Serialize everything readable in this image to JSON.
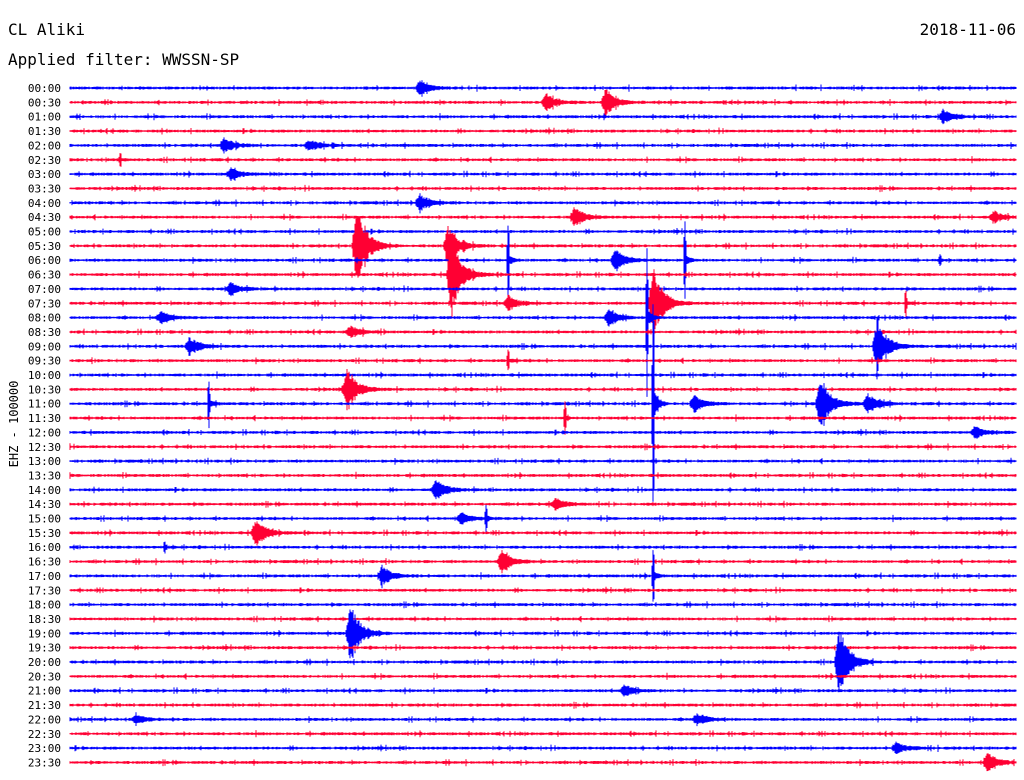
{
  "header": {
    "station": "CL Aliki",
    "date": "2018-11-06",
    "filter": "Applied filter: WWSSN-SP"
  },
  "chart_data": {
    "type": "line",
    "title": "CL Aliki",
    "subtitle": "Applied filter: WWSSN-SP",
    "ylabel": "EHZ - 100000",
    "xlabel": "",
    "grid": false,
    "legend": "none",
    "colors": {
      "even_rows": "#0000ff",
      "odd_rows": "#ff0033"
    },
    "row_labels": [
      "00:00",
      "00:30",
      "01:00",
      "01:30",
      "02:00",
      "02:30",
      "03:00",
      "03:30",
      "04:00",
      "04:30",
      "05:00",
      "05:30",
      "06:00",
      "06:30",
      "07:00",
      "07:30",
      "08:00",
      "08:30",
      "09:00",
      "09:30",
      "10:00",
      "10:30",
      "11:00",
      "11:30",
      "12:00",
      "12:30",
      "13:00",
      "13:30",
      "14:00",
      "14:30",
      "15:00",
      "15:30",
      "16:00",
      "16:30",
      "17:00",
      "17:30",
      "18:00",
      "18:30",
      "19:00",
      "19:30",
      "20:00",
      "20:30",
      "21:00",
      "21:30",
      "22:00",
      "22:30",
      "23:00",
      "23:30"
    ],
    "row_duration_min": 30,
    "events": [
      {
        "row": "00:00",
        "minute": 11.0,
        "amp": 8,
        "type": "burst"
      },
      {
        "row": "00:30",
        "minute": 15.0,
        "amp": 9,
        "type": "burst"
      },
      {
        "row": "00:30",
        "minute": 16.9,
        "amp": 14,
        "type": "burst"
      },
      {
        "row": "01:00",
        "minute": 27.6,
        "amp": 7,
        "type": "burst"
      },
      {
        "row": "02:00",
        "minute": 4.8,
        "amp": 8,
        "type": "burst"
      },
      {
        "row": "02:00",
        "minute": 7.5,
        "amp": 5,
        "type": "burst"
      },
      {
        "row": "02:30",
        "minute": 1.6,
        "amp": 7,
        "type": "spike"
      },
      {
        "row": "03:00",
        "minute": 5.0,
        "amp": 6,
        "type": "burst"
      },
      {
        "row": "04:00",
        "minute": 11.0,
        "amp": 9,
        "type": "burst"
      },
      {
        "row": "04:30",
        "minute": 15.9,
        "amp": 10,
        "type": "burst"
      },
      {
        "row": "04:30",
        "minute": 29.2,
        "amp": 6,
        "type": "burst"
      },
      {
        "row": "05:30",
        "minute": 9.0,
        "amp": 45,
        "type": "burst"
      },
      {
        "row": "05:30",
        "minute": 11.9,
        "amp": 20,
        "type": "burst"
      },
      {
        "row": "06:30",
        "minute": 12.0,
        "amp": 40,
        "type": "burst"
      },
      {
        "row": "06:00",
        "minute": 13.9,
        "amp": 40,
        "type": "spike"
      },
      {
        "row": "06:00",
        "minute": 17.2,
        "amp": 12,
        "type": "burst"
      },
      {
        "row": "06:00",
        "minute": 19.5,
        "amp": 40,
        "type": "spike"
      },
      {
        "row": "06:00",
        "minute": 27.6,
        "amp": 6,
        "type": "spike"
      },
      {
        "row": "07:00",
        "minute": 5.0,
        "amp": 6,
        "type": "burst"
      },
      {
        "row": "07:30",
        "minute": 13.8,
        "amp": 8,
        "type": "burst"
      },
      {
        "row": "07:30",
        "minute": 18.4,
        "amp": 40,
        "type": "burst"
      },
      {
        "row": "07:30",
        "minute": 26.5,
        "amp": 14,
        "type": "spike"
      },
      {
        "row": "08:00",
        "minute": 2.8,
        "amp": 6,
        "type": "burst"
      },
      {
        "row": "08:00",
        "minute": 17.0,
        "amp": 8,
        "type": "burst"
      },
      {
        "row": "08:00",
        "minute": 18.3,
        "amp": 70,
        "type": "spike"
      },
      {
        "row": "08:30",
        "minute": 8.8,
        "amp": 6,
        "type": "burst"
      },
      {
        "row": "09:00",
        "minute": 3.7,
        "amp": 9,
        "type": "burst"
      },
      {
        "row": "09:00",
        "minute": 25.5,
        "amp": 28,
        "type": "burst"
      },
      {
        "row": "09:30",
        "minute": 13.9,
        "amp": 12,
        "type": "spike"
      },
      {
        "row": "10:30",
        "minute": 8.7,
        "amp": 22,
        "type": "burst"
      },
      {
        "row": "11:00",
        "minute": 4.4,
        "amp": 24,
        "type": "spike"
      },
      {
        "row": "11:00",
        "minute": 18.5,
        "amp": 120,
        "type": "spike"
      },
      {
        "row": "11:00",
        "minute": 19.7,
        "amp": 8,
        "type": "burst"
      },
      {
        "row": "11:00",
        "minute": 23.7,
        "amp": 30,
        "type": "burst"
      },
      {
        "row": "11:00",
        "minute": 25.2,
        "amp": 10,
        "type": "burst"
      },
      {
        "row": "11:30",
        "minute": 15.7,
        "amp": 16,
        "type": "spike"
      },
      {
        "row": "12:00",
        "minute": 28.6,
        "amp": 6,
        "type": "burst"
      },
      {
        "row": "14:00",
        "minute": 11.5,
        "amp": 12,
        "type": "burst"
      },
      {
        "row": "14:30",
        "minute": 15.3,
        "amp": 6,
        "type": "burst"
      },
      {
        "row": "15:00",
        "minute": 12.3,
        "amp": 6,
        "type": "burst"
      },
      {
        "row": "15:00",
        "minute": 13.2,
        "amp": 14,
        "type": "spike"
      },
      {
        "row": "15:30",
        "minute": 5.8,
        "amp": 14,
        "type": "burst"
      },
      {
        "row": "16:00",
        "minute": 3.0,
        "amp": 6,
        "type": "spike"
      },
      {
        "row": "16:30",
        "minute": 13.6,
        "amp": 12,
        "type": "burst"
      },
      {
        "row": "17:00",
        "minute": 9.8,
        "amp": 10,
        "type": "burst"
      },
      {
        "row": "17:00",
        "minute": 18.5,
        "amp": 30,
        "type": "spike"
      },
      {
        "row": "19:00",
        "minute": 8.8,
        "amp": 30,
        "type": "burst"
      },
      {
        "row": "20:00",
        "minute": 24.3,
        "amp": 36,
        "type": "burst"
      },
      {
        "row": "21:00",
        "minute": 17.5,
        "amp": 6,
        "type": "burst"
      },
      {
        "row": "22:00",
        "minute": 2.0,
        "amp": 5,
        "type": "burst"
      },
      {
        "row": "22:00",
        "minute": 19.8,
        "amp": 6,
        "type": "burst"
      },
      {
        "row": "23:00",
        "minute": 26.1,
        "amp": 6,
        "type": "burst"
      },
      {
        "row": "23:30",
        "minute": 29.0,
        "amp": 10,
        "type": "burst"
      }
    ]
  }
}
